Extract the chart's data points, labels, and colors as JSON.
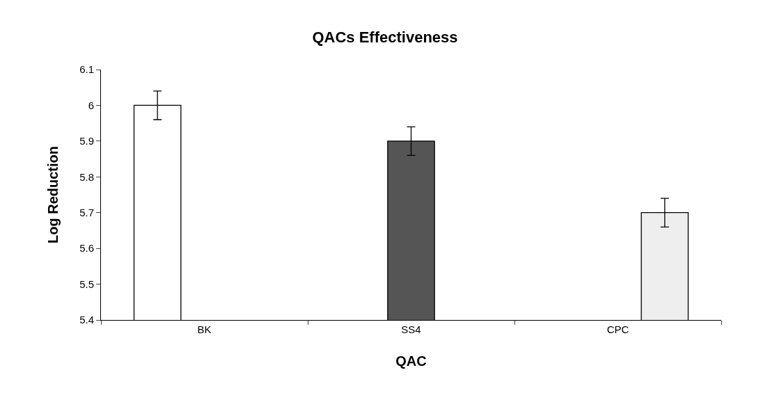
{
  "chart_data": {
    "type": "bar",
    "title": "QACs Effectiveness",
    "xlabel": "QAC",
    "ylabel": "Log Reduction",
    "categories": [
      "BK",
      "SS4",
      "CPC"
    ],
    "series": [
      {
        "color": "#ffffff",
        "values": [
          6.0,
          null,
          null
        ],
        "errors": [
          0.04,
          null,
          null
        ]
      },
      {
        "color": "#555555",
        "values": [
          null,
          5.9,
          null
        ],
        "errors": [
          null,
          0.04,
          null
        ]
      },
      {
        "color": "#eeeeee",
        "values": [
          null,
          null,
          5.7
        ],
        "errors": [
          null,
          null,
          0.04
        ]
      }
    ],
    "ylim": [
      5.4,
      6.1
    ],
    "yticks": [
      5.4,
      5.5,
      5.6,
      5.7,
      5.8,
      5.9,
      {
        "value": 6,
        "label": "6"
      },
      6.1
    ],
    "grid": false
  }
}
